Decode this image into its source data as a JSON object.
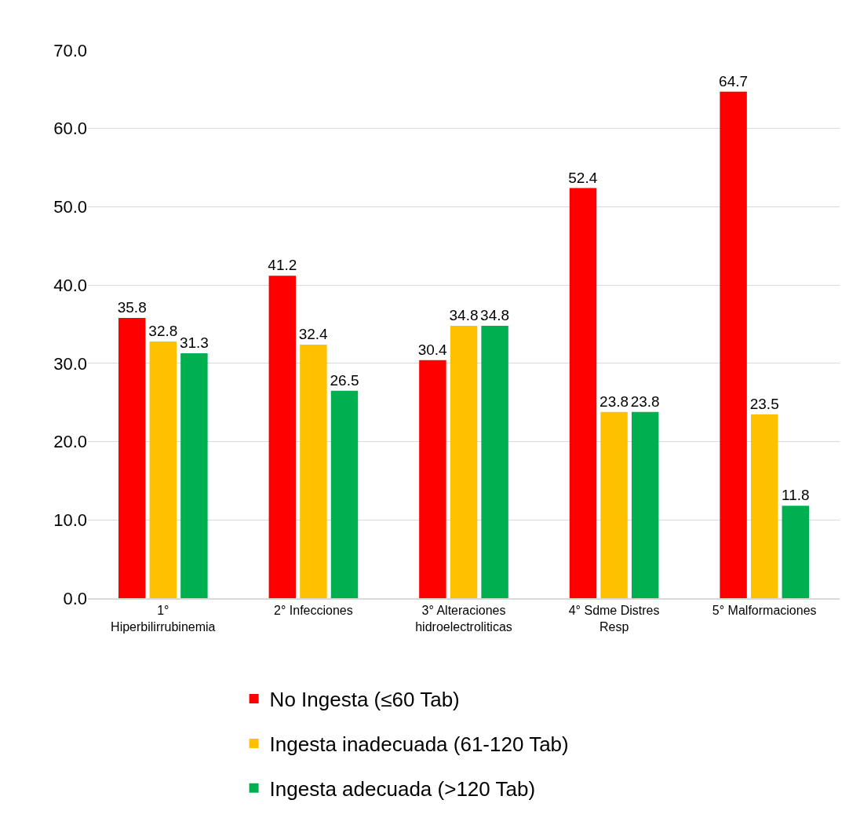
{
  "chart_data": {
    "type": "bar",
    "categories": [
      "1° Hiperbilirrubinemia",
      "2° Infecciones",
      "3° Alteraciones hidroelectroliticas",
      "4° Sdme Distres Resp",
      "5° Malformaciones"
    ],
    "series": [
      {
        "name": "No Ingesta (≤60 Tab)",
        "color": "#ff0000",
        "values": [
          35.8,
          41.2,
          30.4,
          52.4,
          64.7
        ]
      },
      {
        "name": "Ingesta inadecuada (61-120 Tab)",
        "color": "#ffc000",
        "values": [
          32.8,
          32.4,
          34.8,
          23.8,
          23.5
        ]
      },
      {
        "name": "Ingesta adecuada (>120 Tab)",
        "color": "#00b050",
        "values": [
          31.3,
          26.5,
          34.8,
          23.8,
          11.8
        ]
      }
    ],
    "ylim": [
      0,
      70
    ],
    "yticks": [
      {
        "value": 0,
        "label": "0.0"
      },
      {
        "value": 10,
        "label": "10.0"
      },
      {
        "value": 20,
        "label": "20.0"
      },
      {
        "value": 30,
        "label": "30.0"
      },
      {
        "value": 40,
        "label": "40.0"
      },
      {
        "value": 50,
        "label": "50.0"
      },
      {
        "value": 60,
        "label": "60.0"
      },
      {
        "value": 70,
        "label": "70.0"
      }
    ],
    "grid": "y",
    "legend": "bottom",
    "data_labels": true
  }
}
